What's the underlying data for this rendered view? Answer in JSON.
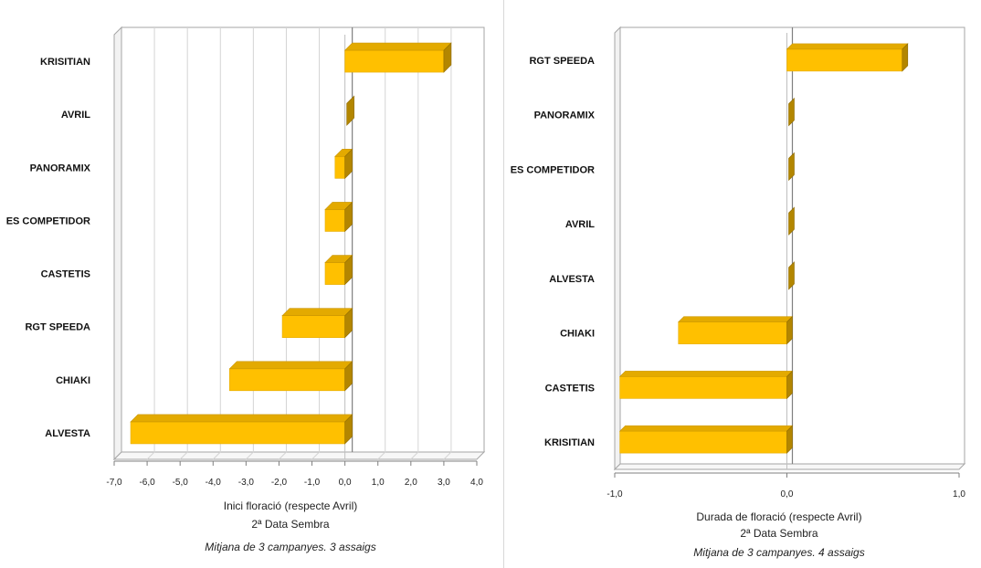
{
  "charts": [
    {
      "id": "left",
      "chart_data": {
        "type": "bar",
        "orientation": "horizontal",
        "style": "3d",
        "categories": [
          "KRISITIAN",
          "AVRIL",
          "PANORAMIX",
          "ES COMPETIDOR",
          "CASTETIS",
          "RGT SPEEDA",
          "CHIAKI",
          "ALVESTA"
        ],
        "values": [
          3.0,
          0.0,
          -0.3,
          -0.6,
          -0.6,
          -1.9,
          -3.5,
          -6.5
        ],
        "xlim": [
          -7,
          4
        ],
        "xticks": [
          -7,
          -6,
          -5,
          -4,
          -3,
          -2,
          -1,
          0,
          1,
          2,
          3,
          4
        ],
        "xtick_labels": [
          "-7,0",
          "-6,0",
          "-5,0",
          "-4,0",
          "-3,0",
          "-2,0",
          "-1,0",
          "0,0",
          "1,0",
          "2,0",
          "3,0",
          "4,0"
        ],
        "xlabel": "Inici floració (respecte Avril)",
        "xlabel2": "2ª Data Sembra",
        "note": "Mitjana de 3 campanyes. 3 assaigs",
        "grid": true,
        "bar_color": "#FFC000"
      }
    },
    {
      "id": "right",
      "chart_data": {
        "type": "bar",
        "orientation": "horizontal",
        "style": "3d",
        "categories": [
          "RGT SPEEDA",
          "PANORAMIX",
          "ES COMPETIDOR",
          "AVRIL",
          "ALVESTA",
          "CHIAKI",
          "CASTETIS",
          "KRISITIAN"
        ],
        "values": [
          0.67,
          0.0,
          0.0,
          0.0,
          0.0,
          -0.63,
          -0.97,
          -0.97
        ],
        "xlim": [
          -1,
          1
        ],
        "xticks": [
          -1,
          0,
          1
        ],
        "xtick_labels": [
          "-1,0",
          "0,0",
          "1,0"
        ],
        "xlabel": "Durada de floració (respecte Avril)",
        "xlabel2": "2ª Data Sembra",
        "note": "Mitjana de 3 campanyes. 4 assaigs",
        "grid": false,
        "bar_color": "#FFC000"
      }
    }
  ]
}
